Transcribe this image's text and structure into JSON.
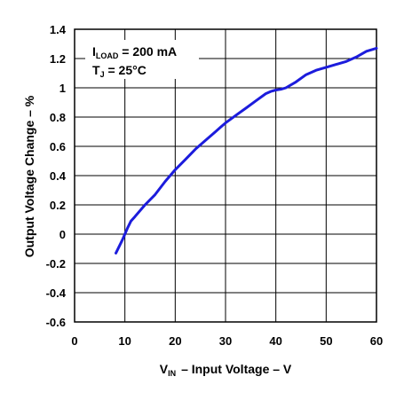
{
  "chart_data": {
    "type": "line",
    "xlim": [
      0,
      60
    ],
    "ylim": [
      -0.6,
      1.4
    ],
    "x_ticks": [
      "0",
      "10",
      "20",
      "30",
      "40",
      "50",
      "60"
    ],
    "y_ticks": [
      "-0.6",
      "-0.4",
      "-0.2",
      "0",
      "0.2",
      "0.4",
      "0.6",
      "0.8",
      "1",
      "1.2",
      "1.4"
    ],
    "xlabel": {
      "main": "V",
      "sub": "IN",
      "rest": "– Input Voltage – V"
    },
    "ylabel": "Output Voltage Change – %",
    "grid": true,
    "line_color": "#1c1cdc",
    "annotations": {
      "iload": {
        "main": "I",
        "sub": "LOAD",
        "rest": " = 200 mA"
      },
      "tj": {
        "main": "T",
        "sub": "J",
        "rest": " = 25°C"
      }
    },
    "series": [
      {
        "x": [
          8.2,
          9.5,
          10.5,
          11.2,
          12,
          14,
          16,
          18,
          20,
          22,
          24,
          26,
          28,
          29,
          30,
          32,
          34,
          36,
          38,
          39,
          40,
          41,
          42,
          44,
          46,
          48,
          50,
          52,
          54,
          56,
          58,
          60
        ],
        "y": [
          -0.13,
          -0.04,
          0.04,
          0.09,
          0.12,
          0.2,
          0.27,
          0.36,
          0.44,
          0.51,
          0.58,
          0.64,
          0.7,
          0.73,
          0.76,
          0.81,
          0.86,
          0.91,
          0.96,
          0.975,
          0.985,
          0.99,
          1.0,
          1.04,
          1.09,
          1.12,
          1.14,
          1.16,
          1.18,
          1.21,
          1.25,
          1.27
        ]
      }
    ]
  }
}
